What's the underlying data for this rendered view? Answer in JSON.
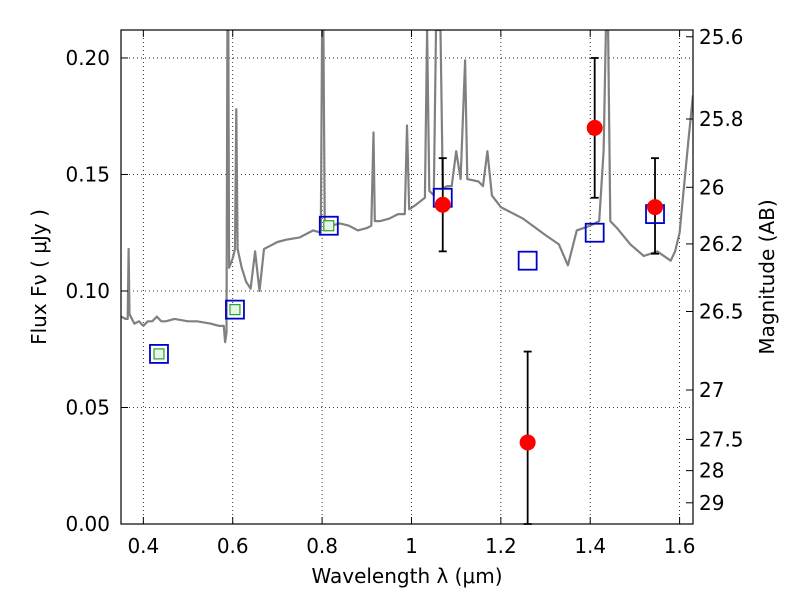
{
  "chart_data": {
    "type": "scatter",
    "xlabel": "Wavelength  λ (μm)",
    "ylabel": "Flux  Fν  ( μJy )",
    "y2label": "Magnitude (AB)",
    "xlim": [
      0.35,
      1.63
    ],
    "ylim": [
      0.0,
      0.212
    ],
    "grid": true,
    "x_ticks": [
      0.4,
      0.6,
      0.8,
      1.0,
      1.2,
      1.4,
      1.6
    ],
    "x_tick_labels": [
      "0.4",
      "0.6",
      "0.8",
      "1",
      "1.2",
      "1.4",
      "1.6"
    ],
    "y_ticks": [
      0.0,
      0.05,
      0.1,
      0.15,
      0.2
    ],
    "y_tick_labels": [
      "0.00",
      "0.05",
      "0.10",
      "0.15",
      "0.20"
    ],
    "y2_ticks": [
      {
        "label": "25.6",
        "flux": 0.2091
      },
      {
        "label": "25.8",
        "flux": 0.1738
      },
      {
        "label": "26",
        "flux": 0.1445
      },
      {
        "label": "26.2",
        "flux": 0.1202
      },
      {
        "label": "26.5",
        "flux": 0.0912
      },
      {
        "label": "27",
        "flux": 0.0575
      },
      {
        "label": "27.5",
        "flux": 0.0363
      },
      {
        "label": "28",
        "flux": 0.0229
      },
      {
        "label": "29",
        "flux": 0.0091
      }
    ],
    "colors": {
      "spectrum": "#808080",
      "model_box": "#0000cc",
      "filled_box": "#2ca02c",
      "observed": "#ff0000",
      "errorbar": "#000000"
    },
    "model_spectrum": [
      [
        0.35,
        0.089
      ],
      [
        0.36,
        0.088
      ],
      [
        0.365,
        0.088
      ],
      [
        0.367,
        0.118
      ],
      [
        0.369,
        0.09
      ],
      [
        0.38,
        0.086
      ],
      [
        0.39,
        0.087
      ],
      [
        0.4,
        0.085
      ],
      [
        0.41,
        0.087
      ],
      [
        0.42,
        0.087
      ],
      [
        0.43,
        0.089
      ],
      [
        0.44,
        0.087
      ],
      [
        0.45,
        0.087
      ],
      [
        0.47,
        0.088
      ],
      [
        0.5,
        0.087
      ],
      [
        0.52,
        0.087
      ],
      [
        0.55,
        0.086
      ],
      [
        0.57,
        0.085
      ],
      [
        0.58,
        0.085
      ],
      [
        0.583,
        0.078
      ],
      [
        0.586,
        0.082
      ],
      [
        0.588,
        0.212
      ],
      [
        0.59,
        0.212
      ],
      [
        0.592,
        0.11
      ],
      [
        0.6,
        0.114
      ],
      [
        0.605,
        0.118
      ],
      [
        0.608,
        0.178
      ],
      [
        0.611,
        0.118
      ],
      [
        0.62,
        0.11
      ],
      [
        0.63,
        0.104
      ],
      [
        0.64,
        0.101
      ],
      [
        0.65,
        0.117
      ],
      [
        0.66,
        0.1
      ],
      [
        0.67,
        0.118
      ],
      [
        0.68,
        0.119
      ],
      [
        0.7,
        0.121
      ],
      [
        0.72,
        0.122
      ],
      [
        0.75,
        0.123
      ],
      [
        0.78,
        0.126
      ],
      [
        0.797,
        0.125
      ],
      [
        0.8,
        0.212
      ],
      [
        0.803,
        0.212
      ],
      [
        0.806,
        0.126
      ],
      [
        0.82,
        0.128
      ],
      [
        0.84,
        0.129
      ],
      [
        0.86,
        0.128
      ],
      [
        0.88,
        0.126
      ],
      [
        0.9,
        0.127
      ],
      [
        0.91,
        0.128
      ],
      [
        0.915,
        0.168
      ],
      [
        0.918,
        0.13
      ],
      [
        0.93,
        0.13
      ],
      [
        0.95,
        0.131
      ],
      [
        0.97,
        0.133
      ],
      [
        0.985,
        0.133
      ],
      [
        0.99,
        0.171
      ],
      [
        0.995,
        0.135
      ],
      [
        1.01,
        0.137
      ],
      [
        1.03,
        0.14
      ],
      [
        1.035,
        0.212
      ],
      [
        1.04,
        0.143
      ],
      [
        1.05,
        0.141
      ],
      [
        1.055,
        0.212
      ],
      [
        1.065,
        0.212
      ],
      [
        1.07,
        0.144
      ],
      [
        1.08,
        0.145
      ],
      [
        1.09,
        0.145
      ],
      [
        1.1,
        0.16
      ],
      [
        1.11,
        0.148
      ],
      [
        1.12,
        0.199
      ],
      [
        1.125,
        0.148
      ],
      [
        1.15,
        0.147
      ],
      [
        1.16,
        0.145
      ],
      [
        1.17,
        0.16
      ],
      [
        1.18,
        0.141
      ],
      [
        1.2,
        0.136
      ],
      [
        1.25,
        0.131
      ],
      [
        1.3,
        0.124
      ],
      [
        1.33,
        0.12
      ],
      [
        1.35,
        0.111
      ],
      [
        1.37,
        0.126
      ],
      [
        1.4,
        0.128
      ],
      [
        1.42,
        0.13
      ],
      [
        1.43,
        0.16
      ],
      [
        1.435,
        0.212
      ],
      [
        1.44,
        0.212
      ],
      [
        1.445,
        0.13
      ],
      [
        1.46,
        0.127
      ],
      [
        1.49,
        0.12
      ],
      [
        1.52,
        0.115
      ],
      [
        1.55,
        0.117
      ],
      [
        1.58,
        0.113
      ],
      [
        1.59,
        0.117
      ],
      [
        1.6,
        0.125
      ],
      [
        1.62,
        0.165
      ],
      [
        1.63,
        0.184
      ]
    ],
    "synthetic_photometry": [
      {
        "x": 0.435,
        "y": 0.073,
        "filled": true
      },
      {
        "x": 0.605,
        "y": 0.092,
        "filled": true
      },
      {
        "x": 0.815,
        "y": 0.128,
        "filled": true
      },
      {
        "x": 1.07,
        "y": 0.14,
        "filled": false
      },
      {
        "x": 1.26,
        "y": 0.113,
        "filled": false
      },
      {
        "x": 1.41,
        "y": 0.125,
        "filled": false
      },
      {
        "x": 1.545,
        "y": 0.133,
        "filled": false
      }
    ],
    "observed": [
      {
        "x": 1.07,
        "y": 0.137,
        "yerr_low": 0.117,
        "yerr_high": 0.157
      },
      {
        "x": 1.26,
        "y": 0.035,
        "yerr_low": 0.0,
        "yerr_high": 0.074
      },
      {
        "x": 1.41,
        "y": 0.17,
        "yerr_low": 0.14,
        "yerr_high": 0.2
      },
      {
        "x": 1.545,
        "y": 0.136,
        "yerr_low": 0.116,
        "yerr_high": 0.157
      }
    ]
  }
}
